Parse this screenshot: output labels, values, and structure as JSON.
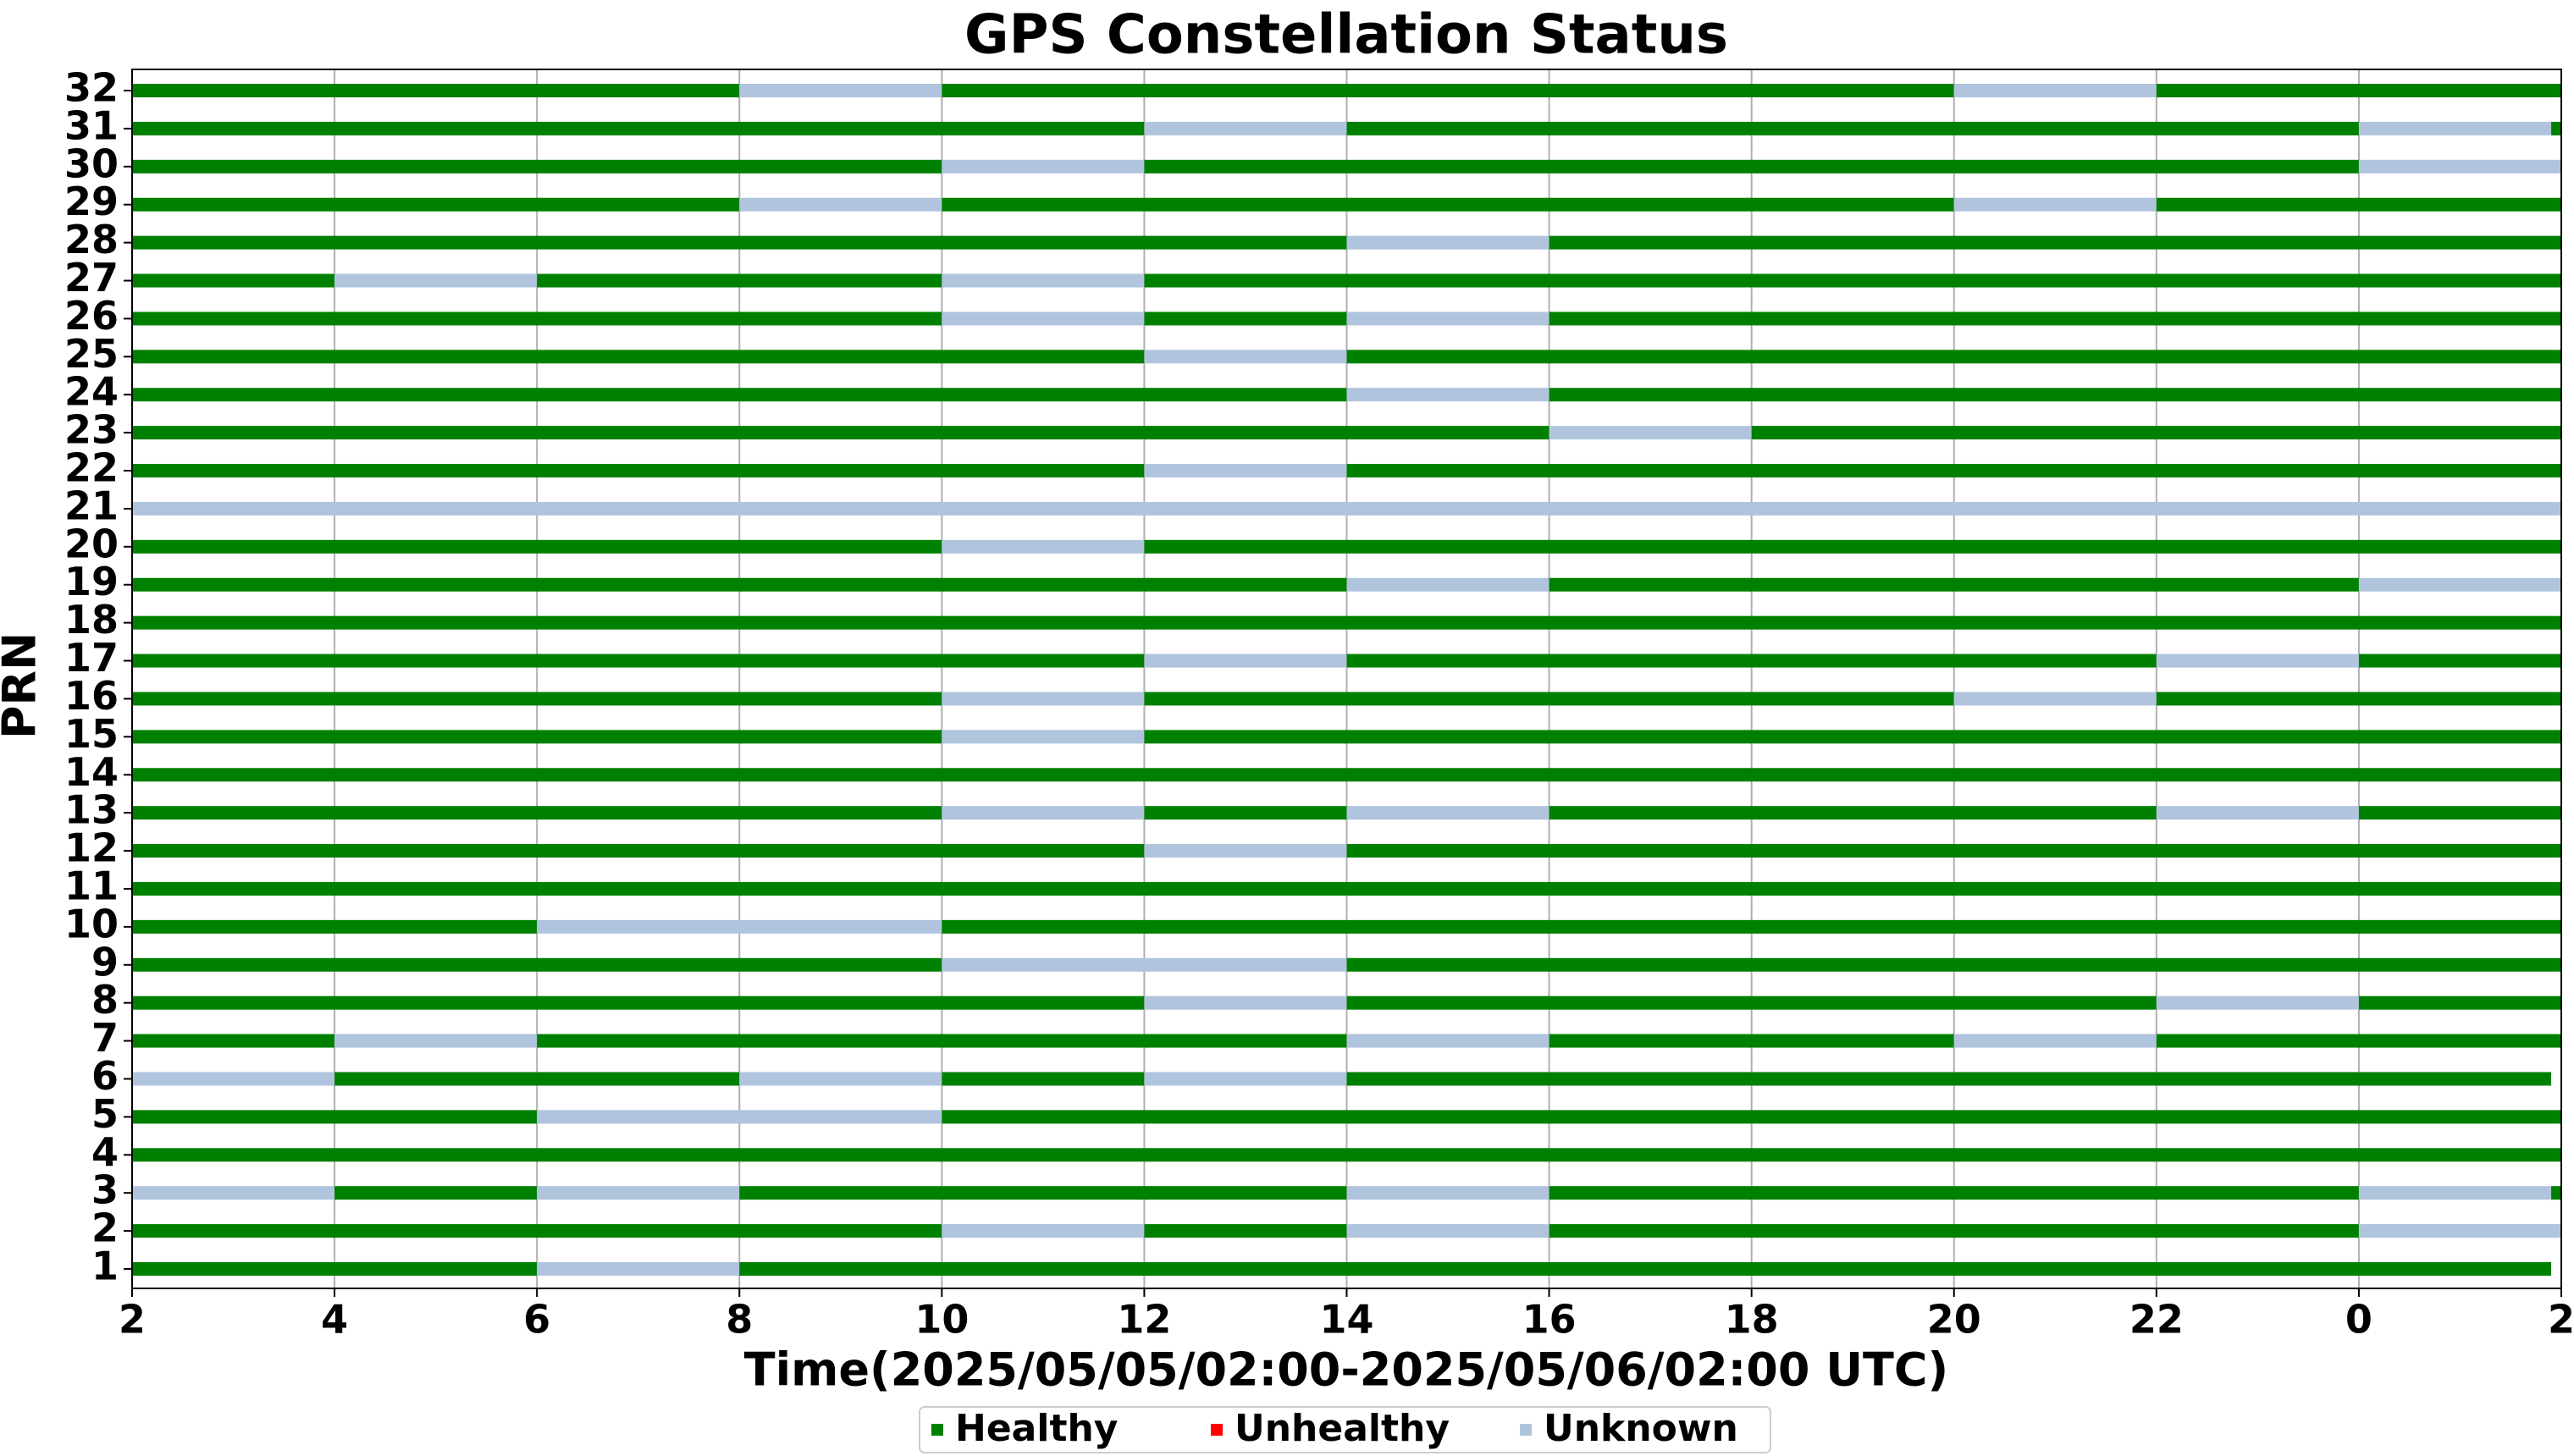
{
  "chart_data": {
    "type": "timeline",
    "title": "GPS Constellation Status",
    "x_label": "Time(2025/05/05/02:00-2025/05/06/02:00 UTC)",
    "y_label": "PRN",
    "xlim": [
      2,
      26
    ],
    "xticks": [
      2,
      4,
      6,
      8,
      10,
      12,
      14,
      16,
      18,
      20,
      22,
      {
        "value": 24,
        "label": "0"
      },
      {
        "value": 26,
        "label": "2"
      }
    ],
    "grid": true,
    "legend": "bottom",
    "series": [
      {
        "name": "Healthy",
        "color": "#008000"
      },
      {
        "name": "Unhealthy",
        "color": "#ff0000"
      },
      {
        "name": "Unknown",
        "color": "#b0c4de"
      }
    ],
    "categories": [
      "1",
      "2",
      "3",
      "4",
      "5",
      "6",
      "7",
      "8",
      "9",
      "10",
      "11",
      "12",
      "13",
      "14",
      "15",
      "16",
      "17",
      "18",
      "19",
      "20",
      "21",
      "22",
      "23",
      "24",
      "25",
      "26",
      "27",
      "28",
      "29",
      "30",
      "31",
      "32"
    ],
    "segments": [
      [
        [
          2,
          6,
          "Healthy"
        ],
        [
          6,
          8,
          "Unknown"
        ],
        [
          8,
          25.9,
          "Healthy"
        ]
      ],
      [
        [
          2,
          10,
          "Healthy"
        ],
        [
          10,
          12,
          "Unknown"
        ],
        [
          12,
          14,
          "Healthy"
        ],
        [
          14,
          16,
          "Unknown"
        ],
        [
          16,
          24,
          "Healthy"
        ],
        [
          24,
          26,
          "Unknown"
        ]
      ],
      [
        [
          2,
          4,
          "Unknown"
        ],
        [
          4,
          6,
          "Healthy"
        ],
        [
          6,
          8,
          "Unknown"
        ],
        [
          8,
          14,
          "Healthy"
        ],
        [
          14,
          16,
          "Unknown"
        ],
        [
          16,
          24,
          "Healthy"
        ],
        [
          24,
          25.9,
          "Unknown"
        ],
        [
          25.9,
          26,
          "Healthy"
        ]
      ],
      [
        [
          2,
          26,
          "Healthy"
        ]
      ],
      [
        [
          2,
          6,
          "Healthy"
        ],
        [
          6,
          10,
          "Unknown"
        ],
        [
          10,
          26,
          "Healthy"
        ]
      ],
      [
        [
          2,
          4,
          "Unknown"
        ],
        [
          4,
          8,
          "Healthy"
        ],
        [
          8,
          10,
          "Unknown"
        ],
        [
          10,
          12,
          "Healthy"
        ],
        [
          12,
          14,
          "Unknown"
        ],
        [
          14,
          25.9,
          "Healthy"
        ]
      ],
      [
        [
          2,
          4,
          "Healthy"
        ],
        [
          4,
          6,
          "Unknown"
        ],
        [
          6,
          14,
          "Healthy"
        ],
        [
          14,
          16,
          "Unknown"
        ],
        [
          16,
          20,
          "Healthy"
        ],
        [
          20,
          22,
          "Unknown"
        ],
        [
          22,
          26,
          "Healthy"
        ]
      ],
      [
        [
          2,
          12,
          "Healthy"
        ],
        [
          12,
          14,
          "Unknown"
        ],
        [
          14,
          22,
          "Healthy"
        ],
        [
          22,
          24,
          "Unknown"
        ],
        [
          24,
          26,
          "Healthy"
        ]
      ],
      [
        [
          2,
          10,
          "Healthy"
        ],
        [
          10,
          14,
          "Unknown"
        ],
        [
          14,
          26,
          "Healthy"
        ]
      ],
      [
        [
          2,
          6,
          "Healthy"
        ],
        [
          6,
          10,
          "Unknown"
        ],
        [
          10,
          26,
          "Healthy"
        ]
      ],
      [
        [
          2,
          26,
          "Healthy"
        ]
      ],
      [
        [
          2,
          12,
          "Healthy"
        ],
        [
          12,
          14,
          "Unknown"
        ],
        [
          14,
          26,
          "Healthy"
        ]
      ],
      [
        [
          2,
          10,
          "Healthy"
        ],
        [
          10,
          12,
          "Unknown"
        ],
        [
          12,
          14,
          "Healthy"
        ],
        [
          14,
          16,
          "Unknown"
        ],
        [
          16,
          22,
          "Healthy"
        ],
        [
          22,
          24,
          "Unknown"
        ],
        [
          24,
          26,
          "Healthy"
        ]
      ],
      [
        [
          2,
          26,
          "Healthy"
        ]
      ],
      [
        [
          2,
          10,
          "Healthy"
        ],
        [
          10,
          12,
          "Unknown"
        ],
        [
          12,
          26,
          "Healthy"
        ]
      ],
      [
        [
          2,
          10,
          "Healthy"
        ],
        [
          10,
          12,
          "Unknown"
        ],
        [
          12,
          20,
          "Healthy"
        ],
        [
          20,
          22,
          "Unknown"
        ],
        [
          22,
          26,
          "Healthy"
        ]
      ],
      [
        [
          2,
          12,
          "Healthy"
        ],
        [
          12,
          14,
          "Unknown"
        ],
        [
          14,
          22,
          "Healthy"
        ],
        [
          22,
          24,
          "Unknown"
        ],
        [
          24,
          26,
          "Healthy"
        ]
      ],
      [
        [
          2,
          26,
          "Healthy"
        ]
      ],
      [
        [
          2,
          14,
          "Healthy"
        ],
        [
          14,
          16,
          "Unknown"
        ],
        [
          16,
          24,
          "Healthy"
        ],
        [
          24,
          26,
          "Unknown"
        ]
      ],
      [
        [
          2,
          10,
          "Healthy"
        ],
        [
          10,
          12,
          "Unknown"
        ],
        [
          12,
          26,
          "Healthy"
        ]
      ],
      [
        [
          2,
          26,
          "Unknown"
        ]
      ],
      [
        [
          2,
          12,
          "Healthy"
        ],
        [
          12,
          14,
          "Unknown"
        ],
        [
          14,
          26,
          "Healthy"
        ]
      ],
      [
        [
          2,
          16,
          "Healthy"
        ],
        [
          16,
          18,
          "Unknown"
        ],
        [
          18,
          26,
          "Healthy"
        ]
      ],
      [
        [
          2,
          14,
          "Healthy"
        ],
        [
          14,
          16,
          "Unknown"
        ],
        [
          16,
          26,
          "Healthy"
        ]
      ],
      [
        [
          2,
          12,
          "Healthy"
        ],
        [
          12,
          14,
          "Unknown"
        ],
        [
          14,
          26,
          "Healthy"
        ]
      ],
      [
        [
          2,
          10,
          "Healthy"
        ],
        [
          10,
          12,
          "Unknown"
        ],
        [
          12,
          14,
          "Healthy"
        ],
        [
          14,
          16,
          "Unknown"
        ],
        [
          16,
          26,
          "Healthy"
        ]
      ],
      [
        [
          2,
          4,
          "Healthy"
        ],
        [
          4,
          6,
          "Unknown"
        ],
        [
          6,
          10,
          "Healthy"
        ],
        [
          10,
          12,
          "Unknown"
        ],
        [
          12,
          26,
          "Healthy"
        ]
      ],
      [
        [
          2,
          14,
          "Healthy"
        ],
        [
          14,
          16,
          "Unknown"
        ],
        [
          16,
          26,
          "Healthy"
        ]
      ],
      [
        [
          2,
          8,
          "Healthy"
        ],
        [
          8,
          10,
          "Unknown"
        ],
        [
          10,
          20,
          "Healthy"
        ],
        [
          20,
          22,
          "Unknown"
        ],
        [
          22,
          26,
          "Healthy"
        ]
      ],
      [
        [
          2,
          10,
          "Healthy"
        ],
        [
          10,
          12,
          "Unknown"
        ],
        [
          12,
          24,
          "Healthy"
        ],
        [
          24,
          26,
          "Unknown"
        ]
      ],
      [
        [
          2,
          12,
          "Healthy"
        ],
        [
          12,
          14,
          "Unknown"
        ],
        [
          14,
          24,
          "Healthy"
        ],
        [
          24,
          25.9,
          "Unknown"
        ],
        [
          25.9,
          26,
          "Healthy"
        ]
      ],
      [
        [
          2,
          8,
          "Healthy"
        ],
        [
          8,
          10,
          "Unknown"
        ],
        [
          10,
          20,
          "Healthy"
        ],
        [
          20,
          22,
          "Unknown"
        ],
        [
          22,
          26,
          "Healthy"
        ]
      ]
    ]
  }
}
